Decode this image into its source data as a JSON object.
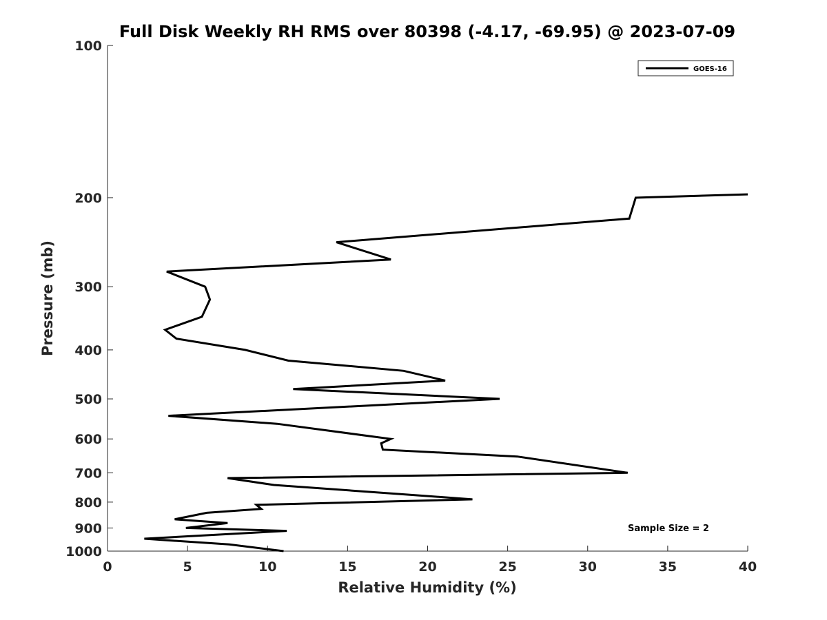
{
  "chart_data": {
    "type": "line",
    "title": "Full Disk Weekly RH RMS over 80398 (-4.17, -69.95) @ 2023-07-09",
    "xlabel": "Relative Humidity (%)",
    "ylabel": "Pressure (mb)",
    "xlim": [
      0,
      40
    ],
    "ylim": [
      100,
      1000
    ],
    "y_scale": "log",
    "y_reversed": true,
    "x_ticks": [
      0,
      5,
      10,
      15,
      20,
      25,
      30,
      35,
      40
    ],
    "y_ticks": [
      100,
      200,
      300,
      400,
      500,
      600,
      700,
      800,
      900,
      1000
    ],
    "grid": false,
    "legend_position": "top-right",
    "annotation": "Sample Size = 2",
    "series": [
      {
        "name": "GOES-16",
        "color": "#000000",
        "points": [
          {
            "rh": 40.0,
            "p": 197
          },
          {
            "rh": 33.0,
            "p": 200
          },
          {
            "rh": 32.6,
            "p": 220
          },
          {
            "rh": 14.3,
            "p": 245
          },
          {
            "rh": 17.7,
            "p": 265
          },
          {
            "rh": 3.7,
            "p": 280
          },
          {
            "rh": 6.1,
            "p": 300
          },
          {
            "rh": 6.4,
            "p": 318
          },
          {
            "rh": 5.9,
            "p": 344
          },
          {
            "rh": 3.6,
            "p": 365
          },
          {
            "rh": 4.3,
            "p": 380
          },
          {
            "rh": 8.6,
            "p": 400
          },
          {
            "rh": 11.3,
            "p": 420
          },
          {
            "rh": 18.5,
            "p": 440
          },
          {
            "rh": 21.1,
            "p": 460
          },
          {
            "rh": 11.6,
            "p": 478
          },
          {
            "rh": 24.5,
            "p": 500
          },
          {
            "rh": 3.8,
            "p": 540
          },
          {
            "rh": 10.6,
            "p": 560
          },
          {
            "rh": 17.7,
            "p": 600
          },
          {
            "rh": 17.1,
            "p": 612
          },
          {
            "rh": 17.2,
            "p": 630
          },
          {
            "rh": 25.6,
            "p": 650
          },
          {
            "rh": 32.5,
            "p": 700
          },
          {
            "rh": 7.5,
            "p": 717
          },
          {
            "rh": 10.4,
            "p": 740
          },
          {
            "rh": 19.2,
            "p": 775
          },
          {
            "rh": 22.8,
            "p": 790
          },
          {
            "rh": 9.3,
            "p": 810
          },
          {
            "rh": 9.6,
            "p": 825
          },
          {
            "rh": 6.2,
            "p": 840
          },
          {
            "rh": 4.2,
            "p": 865
          },
          {
            "rh": 7.5,
            "p": 880
          },
          {
            "rh": 4.9,
            "p": 900
          },
          {
            "rh": 11.2,
            "p": 912
          },
          {
            "rh": 2.3,
            "p": 945
          },
          {
            "rh": 7.6,
            "p": 970
          },
          {
            "rh": 11.0,
            "p": 1000
          }
        ]
      }
    ]
  }
}
